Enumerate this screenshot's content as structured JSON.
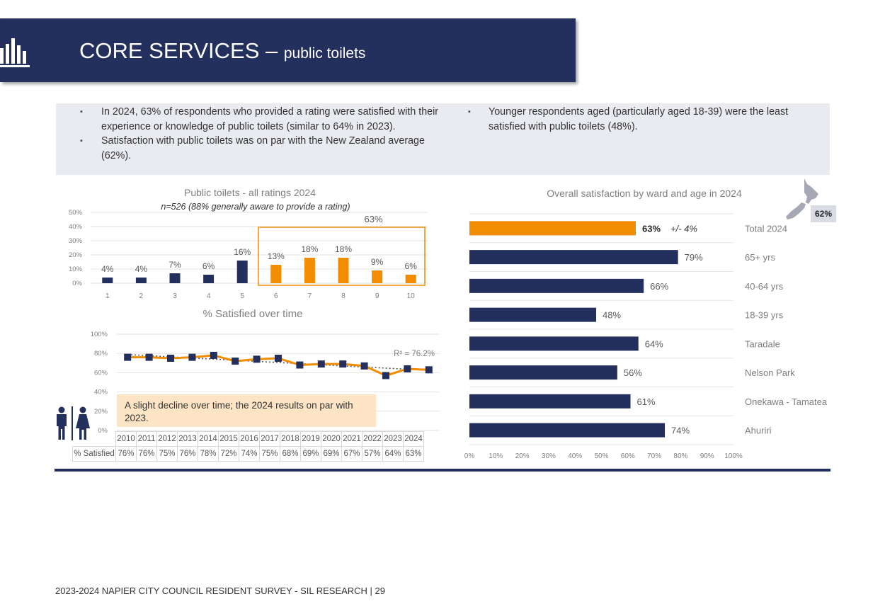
{
  "header": {
    "title": "CORE SERVICES –",
    "subtitle": "public toilets",
    "icon": "bar-chart-icon"
  },
  "summary": {
    "left_bullets": [
      "In 2024, 63% of respondents who provided a rating were satisfied with their experience or knowledge of public toilets (similar to 64% in 2023).",
      "Satisfaction with public toilets was on par with the New Zealand average (62%)."
    ],
    "right_bullets": [
      "Younger respondents aged (particularly aged 18-39) were the least satisfied with public toilets (48%)."
    ]
  },
  "chart_data": [
    {
      "type": "bar",
      "title": "Public toilets - all ratings 2024",
      "subtitle": "n=526 (88% generally aware to provide a rating)",
      "categories": [
        "1",
        "2",
        "3",
        "4",
        "5",
        "6",
        "7",
        "8",
        "9",
        "10"
      ],
      "values": [
        4,
        4,
        7,
        6,
        16,
        13,
        18,
        18,
        9,
        6
      ],
      "value_labels": [
        "4%",
        "4%",
        "7%",
        "6%",
        "16%",
        "13%",
        "18%",
        "18%",
        "9%",
        "6%"
      ],
      "y_ticks": [
        "0%",
        "10%",
        "20%",
        "30%",
        "40%",
        "50%"
      ],
      "ylim": [
        0,
        50
      ],
      "highlight": {
        "from": "6",
        "to": "10",
        "label": "63%"
      },
      "colors": {
        "low": "#232f5c",
        "high": "#f28c00"
      }
    },
    {
      "type": "line",
      "title": "% Satisfied over time",
      "x": [
        "2010",
        "2011",
        "2012",
        "2013",
        "2014",
        "2015",
        "2016",
        "2017",
        "2018",
        "2019",
        "2020",
        "2021",
        "2022",
        "2023",
        "2024"
      ],
      "values": [
        76,
        76,
        75,
        76,
        78,
        72,
        74,
        75,
        68,
        69,
        69,
        67,
        57,
        64,
        63
      ],
      "value_labels": [
        "76%",
        "76%",
        "75%",
        "76%",
        "78%",
        "72%",
        "74%",
        "75%",
        "68%",
        "69%",
        "69%",
        "67%",
        "57%",
        "64%",
        "63%"
      ],
      "row_label": "% Satisfied",
      "y_ticks": [
        "0%",
        "20%",
        "40%",
        "60%",
        "80%",
        "100%"
      ],
      "ylim": [
        0,
        100
      ],
      "trendline_label": "R² = 76.2%",
      "colors": {
        "line": "#f28c00",
        "marker": "#232f5c",
        "trend": "#555555"
      }
    },
    {
      "type": "bar",
      "orientation": "horizontal",
      "title": "Overall satisfaction by ward and age in 2024",
      "categories": [
        "Total 2024",
        "65+ yrs",
        "40-64 yrs",
        "18-39 yrs",
        "Taradale",
        "Nelson Park",
        "Onekawa - Tamatea",
        "Ahuriri"
      ],
      "values": [
        63,
        79,
        66,
        48,
        64,
        56,
        61,
        74
      ],
      "value_labels": [
        "63%",
        "79%",
        "66%",
        "48%",
        "64%",
        "56%",
        "61%",
        "74%"
      ],
      "total_margin": "+/- 4%",
      "x_ticks": [
        "0%",
        "10%",
        "20%",
        "30%",
        "40%",
        "50%",
        "60%",
        "70%",
        "80%",
        "90%",
        "100%"
      ],
      "xlim": [
        0,
        100
      ],
      "colors": {
        "total": "#f28c00",
        "other": "#232f5c"
      }
    }
  ],
  "nz_average": {
    "label": "62%",
    "icon": "new-zealand-map-icon"
  },
  "note": "A slight decline over time; the 2024 results on par with 2023.",
  "people_icon": "restroom-people-icon",
  "footer": "2023-2024 NAPIER CITY COUNCIL RESIDENT SURVEY - SIL RESEARCH | 29"
}
